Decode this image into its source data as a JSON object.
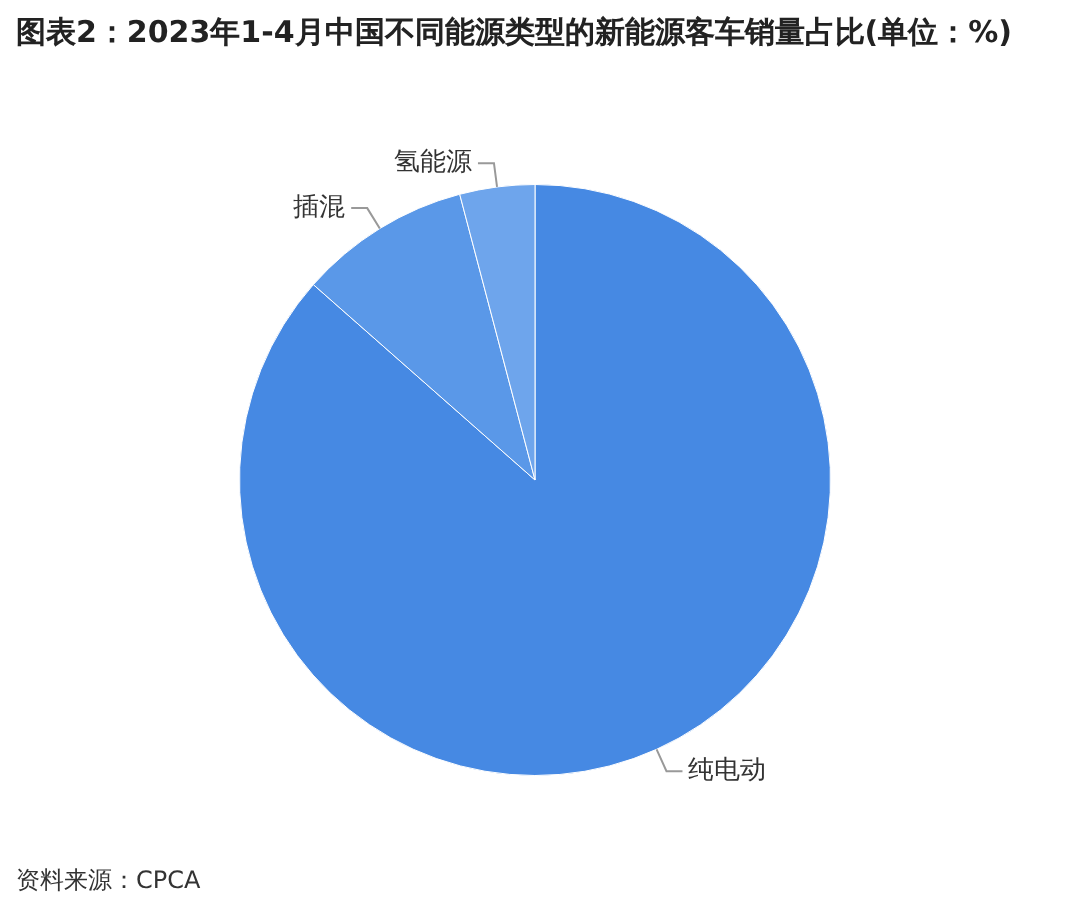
{
  "chart_data": {
    "type": "pie",
    "title": "图表2：2023年1-4月中国不同能源类型的新能源客车销量占比(单位：%)",
    "categories": [
      "纯电动",
      "插混",
      "氢能源"
    ],
    "values": [
      86.5,
      9.4,
      4.1
    ],
    "colors": [
      "#4689e3",
      "#5a98e8",
      "#6ea5ec"
    ],
    "annotations": [
      "资料来源：CPCA"
    ],
    "legend": false
  }
}
